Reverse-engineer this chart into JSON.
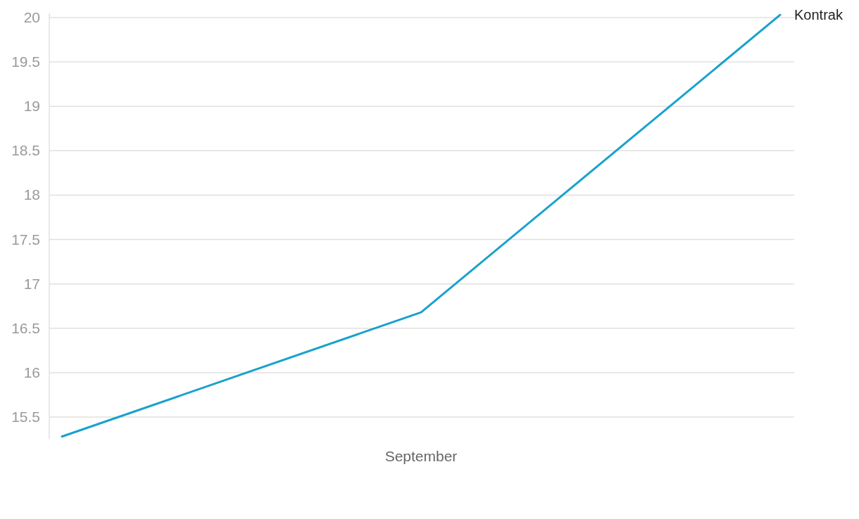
{
  "chart_data": {
    "type": "line",
    "categories": [
      null,
      "September",
      null
    ],
    "series": [
      {
        "name": "Kontrak",
        "color": "#18a1cd",
        "values": [
          15.28,
          16.68,
          20.03
        ]
      }
    ],
    "ylim": [
      15.25,
      20.05
    ],
    "yticks": [
      15.5,
      16,
      16.5,
      17,
      17.5,
      18,
      18.5,
      19,
      19.5,
      20
    ],
    "grid": "y",
    "marker": "none",
    "line_style": "solid"
  }
}
